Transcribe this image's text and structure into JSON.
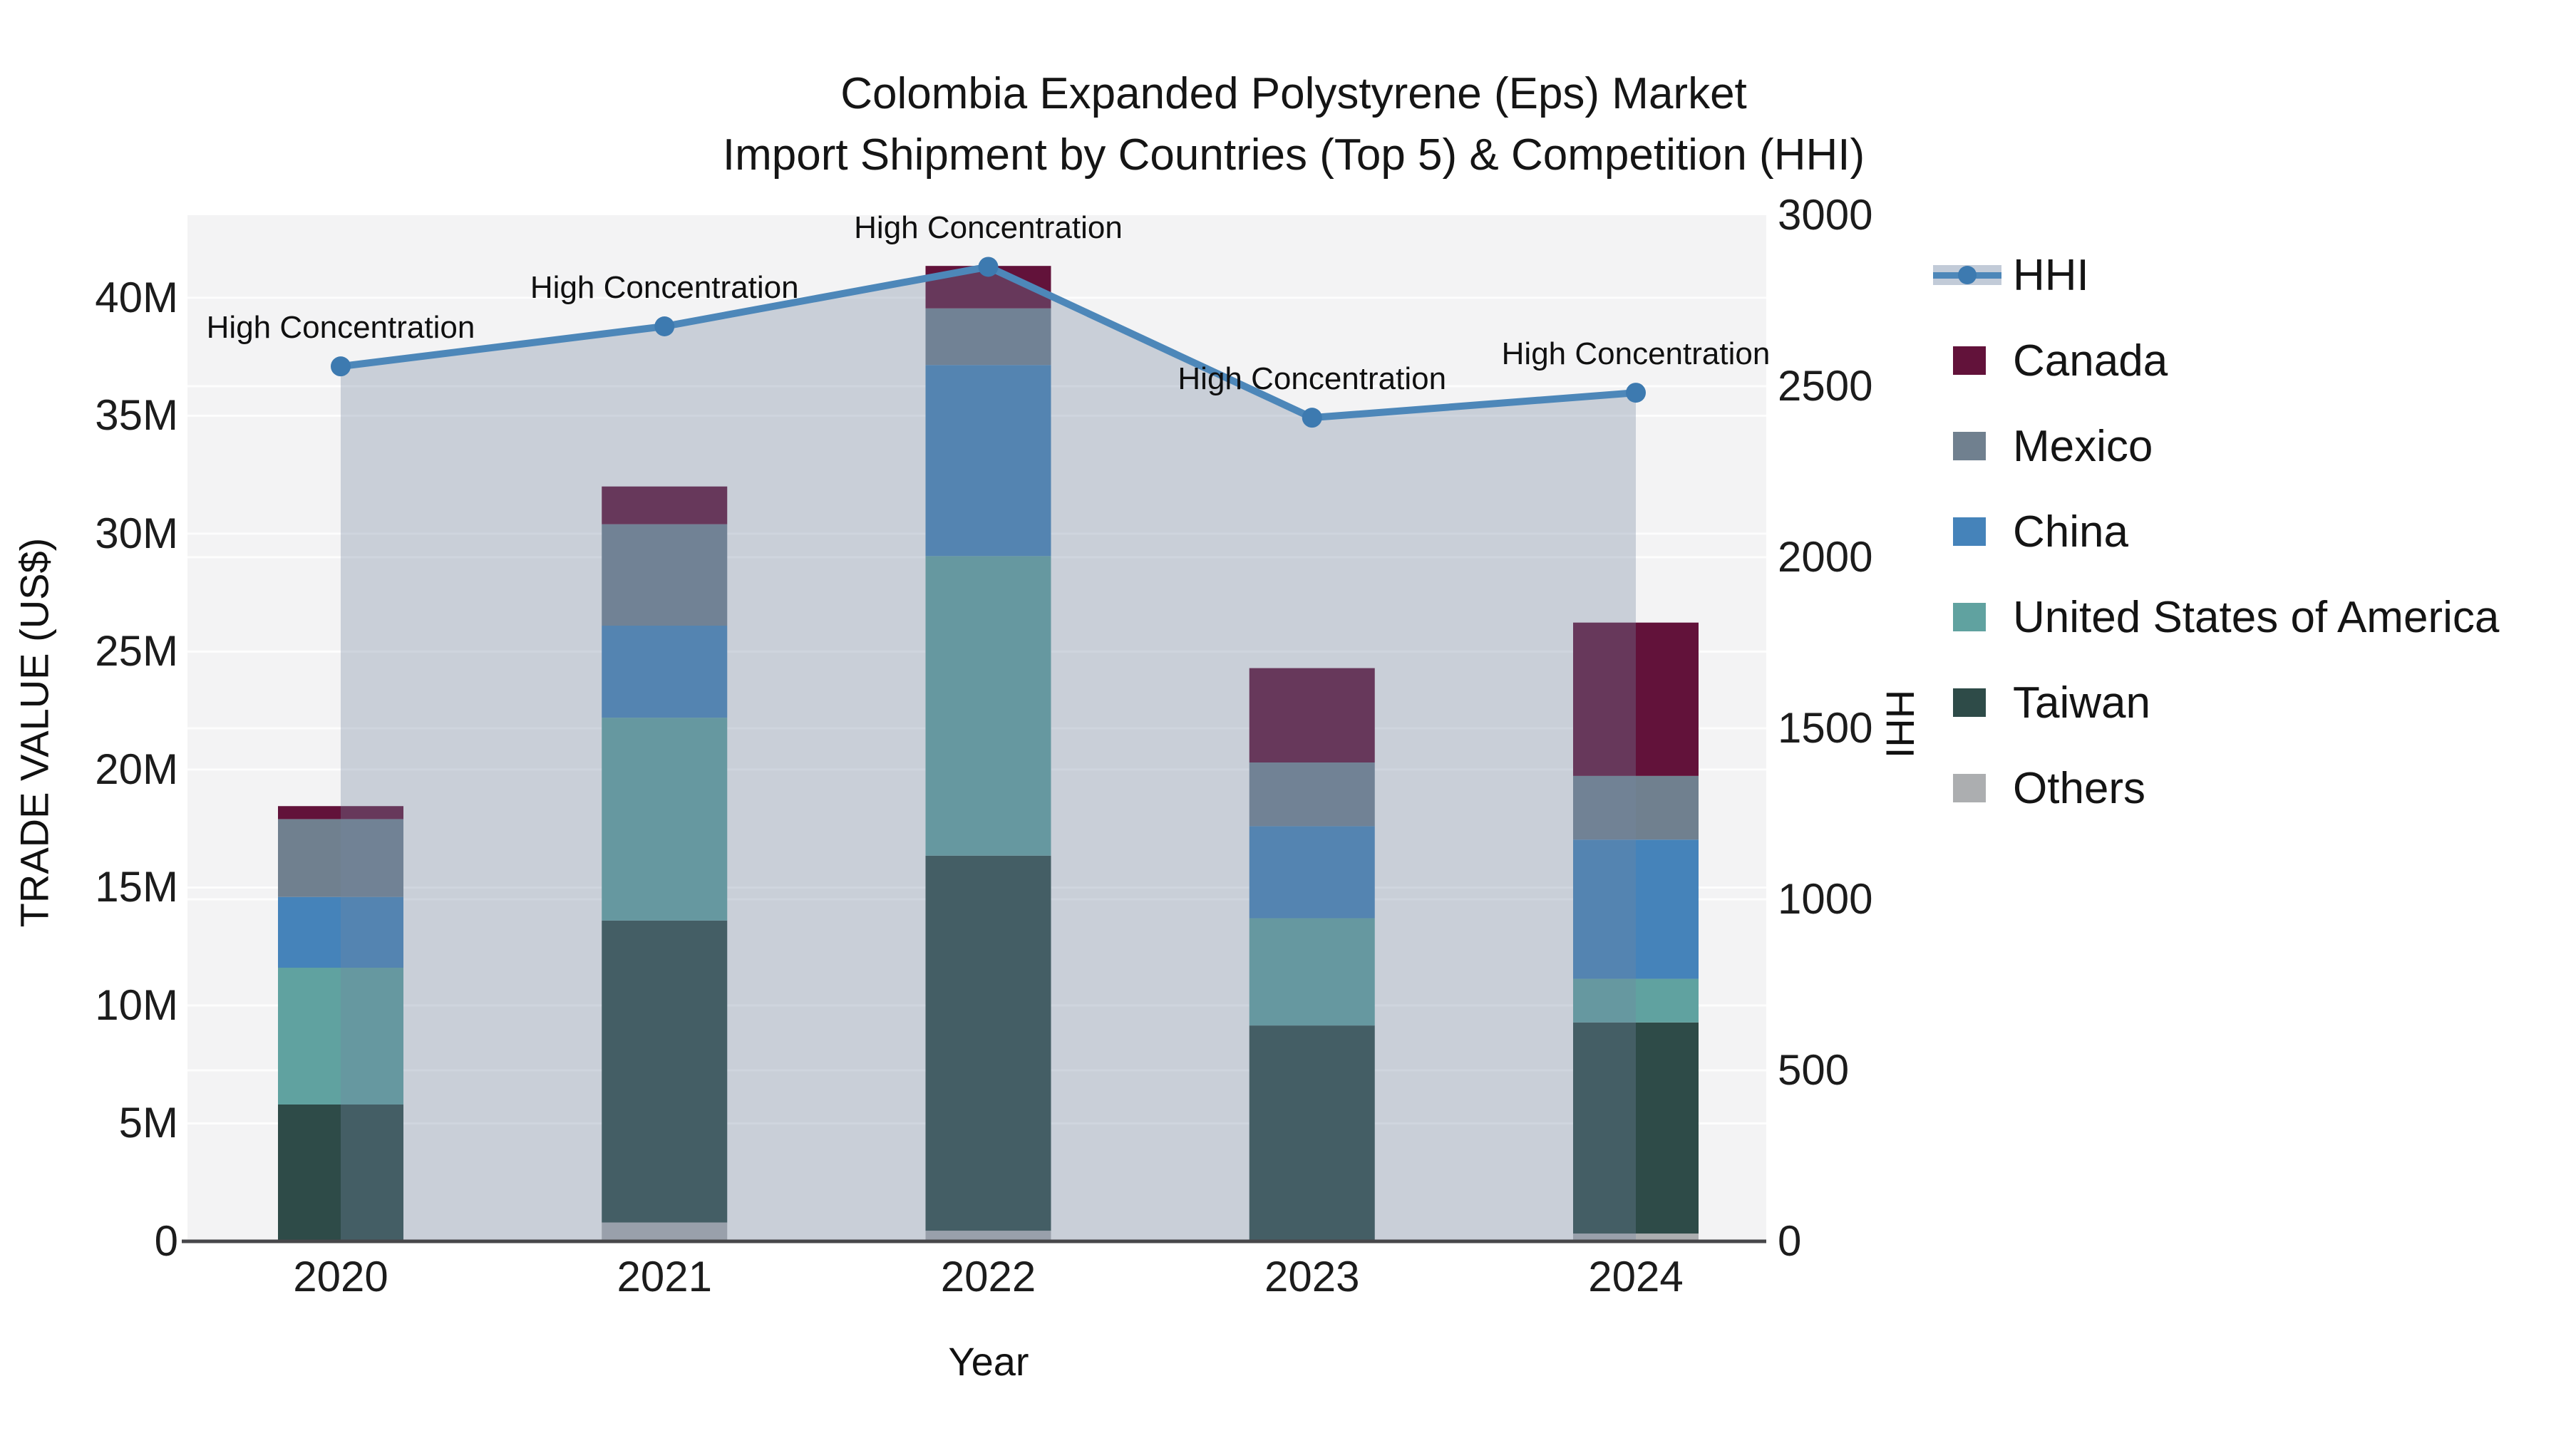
{
  "title": {
    "line1": "Colombia Expanded Polystyrene (Eps) Market",
    "line2": "Import Shipment by Countries (Top 5) & Competition (HHI)"
  },
  "axes": {
    "left": {
      "label": "TRADE VALUE (US$)",
      "ticks": [
        "0",
        "5M",
        "10M",
        "15M",
        "20M",
        "25M",
        "30M",
        "35M",
        "40M"
      ]
    },
    "right": {
      "label": "HHI",
      "ticks": [
        "0",
        "500",
        "1000",
        "1500",
        "2000",
        "2500",
        "3000"
      ]
    },
    "x": {
      "label": "Year",
      "ticks": [
        "2020",
        "2021",
        "2022",
        "2023",
        "2024"
      ]
    }
  },
  "legend": {
    "items": [
      {
        "label": "HHI",
        "type": "line"
      },
      {
        "label": "Canada",
        "type": "patch",
        "color": "#62123a"
      },
      {
        "label": "Mexico",
        "type": "patch",
        "color": "#70808f"
      },
      {
        "label": "China",
        "type": "patch",
        "color": "#4583ba"
      },
      {
        "label": "United States of America",
        "type": "patch",
        "color": "#60a2a0"
      },
      {
        "label": "Taiwan",
        "type": "patch",
        "color": "#2e4b48"
      },
      {
        "label": "Others",
        "type": "patch",
        "color": "#acaeb0"
      }
    ]
  },
  "annotation_text": "High Concentration",
  "colors": {
    "canada": "#62123a",
    "mexico": "#70808f",
    "china": "#4583ba",
    "usa": "#60a2a0",
    "taiwan": "#2e4b48",
    "others": "#acaeb0",
    "hhi_line": "#4d87b9",
    "hhi_marker": "#3d7ab0",
    "hhi_area_fill": "rgba(115,134,160,0.33)",
    "plot_background": "#f3f3f4",
    "gridline": "rgba(255,255,255,0.8)",
    "axis_line": "#47474a",
    "text": "#1a1a1a"
  },
  "chart_data": {
    "type": "bar",
    "subtype": "stacked-bars-with-line-overlay",
    "title": "Colombia Expanded Polystyrene (Eps) Market Import Shipment by Countries (Top 5) & Competition (HHI)",
    "xlabel": "Year",
    "ylabel_left": "TRADE VALUE (US$)",
    "ylabel_right": "HHI",
    "ylim_left_millions": [
      0,
      43.5
    ],
    "ylim_right": [
      0,
      3000
    ],
    "grid": true,
    "legend_position": "right",
    "categories": [
      "2020",
      "2021",
      "2022",
      "2023",
      "2024"
    ],
    "units": "million US$",
    "stack_order_bottom_to_top": [
      "Others",
      "Taiwan",
      "United States of America",
      "China",
      "Mexico",
      "Canada"
    ],
    "series": [
      {
        "name": "Others",
        "color_key": "others",
        "values_millions": [
          0,
          0.8,
          0.45,
          0,
          0.33
        ]
      },
      {
        "name": "Taiwan",
        "color_key": "taiwan",
        "values_millions": [
          5.8,
          12.8,
          15.9,
          9.15,
          8.95
        ]
      },
      {
        "name": "United States of America",
        "color_key": "usa",
        "values_millions": [
          5.8,
          8.6,
          12.7,
          4.55,
          1.85
        ]
      },
      {
        "name": "China",
        "color_key": "china",
        "values_millions": [
          3.0,
          3.9,
          8.1,
          3.9,
          5.9
        ]
      },
      {
        "name": "Mexico",
        "color_key": "mexico",
        "values_millions": [
          3.3,
          4.3,
          2.4,
          2.7,
          2.7
        ]
      },
      {
        "name": "Canada",
        "color_key": "canada",
        "values_millions": [
          0.55,
          1.6,
          1.8,
          4.0,
          6.5
        ]
      }
    ],
    "bar_totals_millions": [
      18.45,
      32.0,
      41.35,
      24.3,
      26.23
    ],
    "line_series": {
      "name": "HHI",
      "values": [
        2558,
        2675,
        2849,
        2408,
        2481
      ],
      "area_fill_under_line": true,
      "point_annotations": [
        "High Concentration",
        "High Concentration",
        "High Concentration",
        "High Concentration",
        "High Concentration"
      ]
    }
  }
}
